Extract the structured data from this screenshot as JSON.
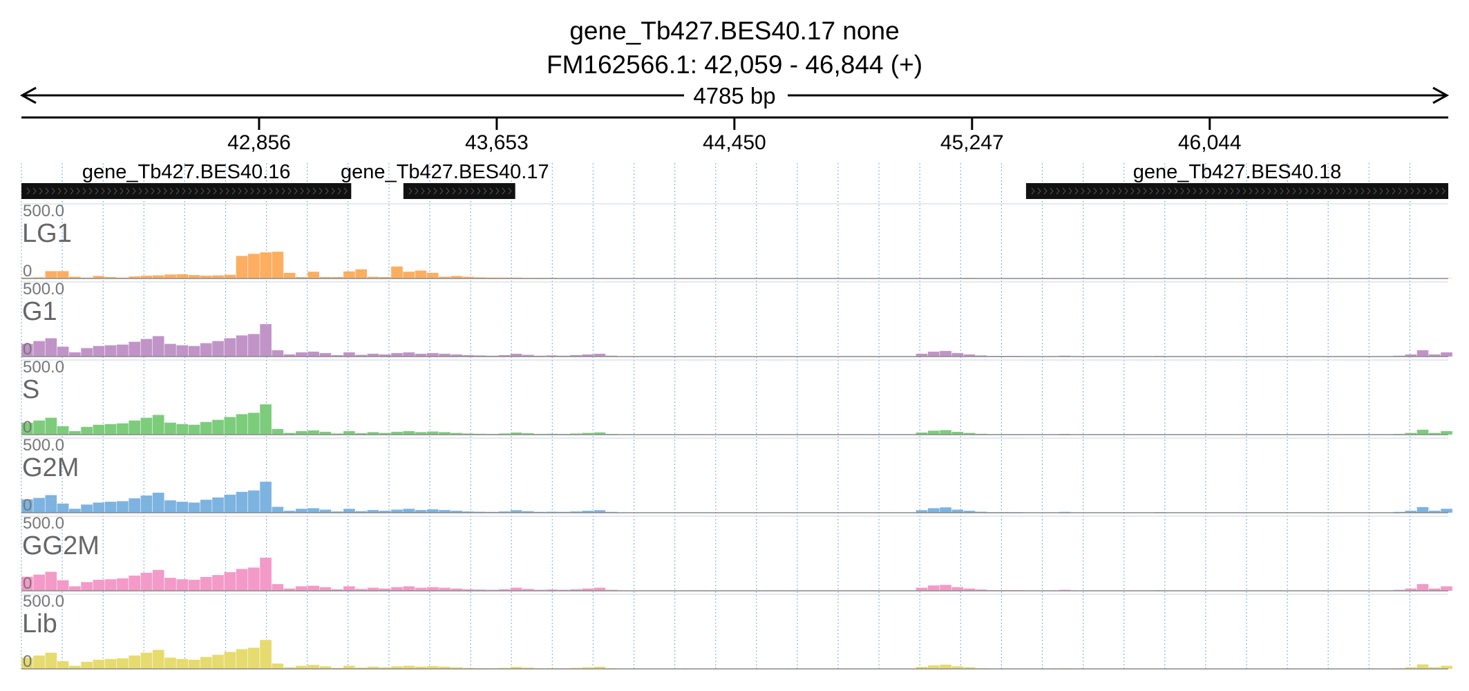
{
  "header": {
    "title": "gene_Tb427.BES40.17  none",
    "locus": "FM162566.1: 42,059 - 46,844 (+)",
    "span_label": "4785 bp"
  },
  "chart_data": {
    "type": "area",
    "region": {
      "chrom": "FM162566.1",
      "start": 42059,
      "end": 46844,
      "strand": "+"
    },
    "xlim": [
      42059,
      46844
    ],
    "x_ticks": [
      42856,
      43653,
      44450,
      45247,
      46044
    ],
    "x_tick_labels": [
      "42,856",
      "43,653",
      "44,450",
      "45,247",
      "46,044"
    ],
    "genes": [
      {
        "name": "gene_Tb427.BES40.16",
        "start": 42059,
        "end": 43165,
        "strand": "+"
      },
      {
        "name": "gene_Tb427.BES40.17",
        "start": 43340,
        "end": 43715,
        "strand": "+"
      },
      {
        "name": "gene_Tb427.BES40.18",
        "start": 45428,
        "end": 46844,
        "strand": "+"
      }
    ],
    "track_max_label": "500.0",
    "track_min_label": "0",
    "ylim": [
      0,
      500
    ],
    "bin_size": 40,
    "x": [
      42059,
      42099,
      42139,
      42179,
      42219,
      42259,
      42299,
      42339,
      42379,
      42419,
      42459,
      42499,
      42539,
      42579,
      42619,
      42659,
      42699,
      42739,
      42779,
      42819,
      42859,
      42899,
      42939,
      42979,
      43019,
      43059,
      43099,
      43139,
      43179,
      43219,
      43259,
      43299,
      43339,
      43379,
      43419,
      43459,
      43499,
      43539,
      43579,
      43619,
      43659,
      43699,
      43739,
      43779,
      43819,
      43859,
      43899,
      43939,
      43979,
      44019,
      44059,
      44099,
      44139,
      44179,
      44219,
      44259,
      44299,
      44339,
      44379,
      44419,
      44459,
      44499,
      44539,
      44579,
      44619,
      44659,
      44699,
      44739,
      44779,
      44819,
      44859,
      44899,
      44939,
      44979,
      45019,
      45059,
      45099,
      45139,
      45179,
      45219,
      45259,
      45299,
      45339,
      45379,
      45419,
      45459,
      45499,
      45539,
      45579,
      45619,
      45659,
      45699,
      45739,
      45779,
      45819,
      45859,
      45899,
      45939,
      45979,
      46019,
      46059,
      46099,
      46139,
      46179,
      46219,
      46259,
      46299,
      46339,
      46379,
      46419,
      46459,
      46499,
      46539,
      46579,
      46619,
      46659,
      46699,
      46739,
      46779,
      46819
    ],
    "series": [
      {
        "name": "LG1",
        "color": "#fdae61",
        "values": [
          6,
          8,
          52,
          52,
          12,
          6,
          18,
          10,
          6,
          14,
          20,
          22,
          28,
          30,
          24,
          20,
          22,
          26,
          160,
          175,
          185,
          190,
          40,
          10,
          48,
          10,
          10,
          50,
          65,
          12,
          10,
          85,
          48,
          56,
          40,
          12,
          18,
          12,
          8,
          6,
          6,
          6,
          4,
          4,
          4,
          2,
          2,
          2,
          2,
          2,
          2,
          2,
          2,
          2,
          2,
          2,
          2,
          2,
          2,
          2,
          2,
          2,
          2,
          2,
          2,
          2,
          2,
          2,
          2,
          2,
          2,
          2,
          2,
          2,
          2,
          2,
          2,
          2,
          2,
          4,
          2,
          2,
          2,
          2,
          2,
          2,
          2,
          2,
          2,
          2,
          2,
          2,
          2,
          2,
          2,
          2,
          2,
          2,
          2,
          2,
          2,
          2,
          2,
          2,
          2,
          2,
          2,
          2,
          2,
          2,
          2,
          2,
          2,
          2,
          2,
          2,
          2,
          2,
          2,
          2
        ]
      },
      {
        "name": "G1",
        "color": "#c194c8",
        "values": [
          90,
          110,
          130,
          70,
          30,
          60,
          75,
          80,
          85,
          105,
          125,
          145,
          90,
          80,
          75,
          95,
          110,
          130,
          150,
          160,
          230,
          45,
          15,
          30,
          35,
          25,
          10,
          30,
          12,
          20,
          15,
          25,
          30,
          20,
          25,
          20,
          15,
          10,
          8,
          6,
          10,
          20,
          12,
          6,
          8,
          6,
          10,
          15,
          20,
          6,
          2,
          2,
          2,
          2,
          2,
          2,
          2,
          2,
          2,
          2,
          2,
          2,
          2,
          2,
          2,
          2,
          2,
          2,
          2,
          2,
          2,
          2,
          2,
          2,
          2,
          20,
          35,
          40,
          25,
          15,
          8,
          4,
          4,
          4,
          2,
          2,
          2,
          6,
          2,
          2,
          2,
          2,
          2,
          2,
          2,
          4,
          2,
          2,
          2,
          2,
          2,
          2,
          2,
          2,
          2,
          2,
          2,
          2,
          2,
          2,
          2,
          2,
          2,
          2,
          2,
          6,
          15,
          45,
          15,
          30
        ]
      },
      {
        "name": "S",
        "color": "#7ccc7c",
        "values": [
          85,
          100,
          120,
          60,
          25,
          55,
          70,
          75,
          80,
          100,
          120,
          140,
          85,
          75,
          70,
          90,
          105,
          125,
          145,
          155,
          215,
          40,
          12,
          25,
          30,
          20,
          8,
          25,
          10,
          18,
          12,
          20,
          25,
          18,
          22,
          18,
          12,
          8,
          6,
          5,
          8,
          15,
          10,
          5,
          6,
          5,
          8,
          12,
          16,
          5,
          2,
          2,
          2,
          2,
          2,
          2,
          2,
          2,
          2,
          2,
          2,
          2,
          2,
          2,
          2,
          2,
          2,
          2,
          2,
          2,
          2,
          2,
          2,
          2,
          2,
          15,
          28,
          32,
          20,
          12,
          6,
          3,
          3,
          3,
          2,
          2,
          2,
          5,
          2,
          2,
          2,
          2,
          2,
          2,
          2,
          3,
          2,
          2,
          2,
          2,
          2,
          2,
          2,
          2,
          2,
          2,
          2,
          2,
          2,
          2,
          2,
          2,
          2,
          2,
          2,
          5,
          12,
          35,
          12,
          25
        ]
      },
      {
        "name": "G2M",
        "color": "#7db3e0",
        "values": [
          95,
          105,
          125,
          65,
          28,
          58,
          72,
          78,
          82,
          102,
          122,
          142,
          88,
          78,
          72,
          92,
          108,
          128,
          148,
          158,
          220,
          42,
          14,
          28,
          32,
          22,
          9,
          28,
          11,
          19,
          14,
          22,
          28,
          19,
          24,
          19,
          14,
          9,
          7,
          6,
          9,
          18,
          11,
          6,
          7,
          6,
          9,
          14,
          18,
          6,
          2,
          2,
          2,
          2,
          2,
          2,
          2,
          2,
          2,
          2,
          2,
          2,
          2,
          2,
          2,
          2,
          2,
          2,
          2,
          2,
          2,
          2,
          2,
          2,
          2,
          18,
          32,
          38,
          22,
          14,
          7,
          4,
          4,
          4,
          2,
          2,
          2,
          6,
          2,
          2,
          2,
          2,
          2,
          2,
          2,
          4,
          2,
          2,
          2,
          2,
          2,
          2,
          2,
          2,
          2,
          2,
          2,
          2,
          2,
          2,
          2,
          2,
          2,
          2,
          2,
          6,
          14,
          40,
          14,
          28
        ]
      },
      {
        "name": "GG2M",
        "color": "#f49ac8",
        "values": [
          100,
          115,
          135,
          75,
          32,
          62,
          78,
          82,
          88,
          108,
          128,
          148,
          92,
          82,
          78,
          98,
          112,
          132,
          155,
          165,
          235,
          48,
          16,
          32,
          36,
          26,
          11,
          32,
          13,
          22,
          16,
          26,
          32,
          22,
          26,
          22,
          16,
          11,
          9,
          7,
          11,
          22,
          13,
          7,
          9,
          7,
          11,
          16,
          22,
          7,
          3,
          3,
          3,
          3,
          3,
          3,
          3,
          3,
          3,
          3,
          3,
          3,
          3,
          3,
          3,
          3,
          3,
          3,
          3,
          3,
          3,
          3,
          3,
          3,
          3,
          22,
          38,
          42,
          26,
          16,
          9,
          5,
          5,
          5,
          3,
          3,
          3,
          7,
          3,
          3,
          3,
          3,
          3,
          3,
          3,
          5,
          3,
          3,
          3,
          3,
          3,
          3,
          3,
          3,
          3,
          3,
          3,
          3,
          3,
          3,
          3,
          3,
          3,
          3,
          3,
          7,
          16,
          48,
          16,
          32
        ]
      },
      {
        "name": "Lib",
        "color": "#e6db6e",
        "values": [
          80,
          95,
          115,
          55,
          22,
          50,
          65,
          70,
          75,
          95,
          115,
          135,
          80,
          70,
          65,
          85,
          100,
          120,
          140,
          150,
          205,
          38,
          11,
          22,
          28,
          18,
          7,
          22,
          9,
          16,
          11,
          18,
          22,
          16,
          20,
          16,
          11,
          7,
          5,
          4,
          7,
          14,
          9,
          4,
          5,
          4,
          7,
          11,
          15,
          4,
          2,
          2,
          2,
          2,
          2,
          2,
          2,
          2,
          2,
          2,
          2,
          2,
          2,
          2,
          2,
          2,
          2,
          2,
          2,
          2,
          2,
          2,
          2,
          2,
          2,
          14,
          25,
          30,
          18,
          11,
          5,
          3,
          3,
          3,
          2,
          2,
          2,
          4,
          2,
          2,
          2,
          2,
          2,
          2,
          2,
          3,
          2,
          2,
          2,
          2,
          2,
          2,
          2,
          2,
          2,
          2,
          2,
          2,
          2,
          2,
          2,
          2,
          2,
          2,
          2,
          4,
          11,
          32,
          11,
          22
        ]
      }
    ]
  }
}
